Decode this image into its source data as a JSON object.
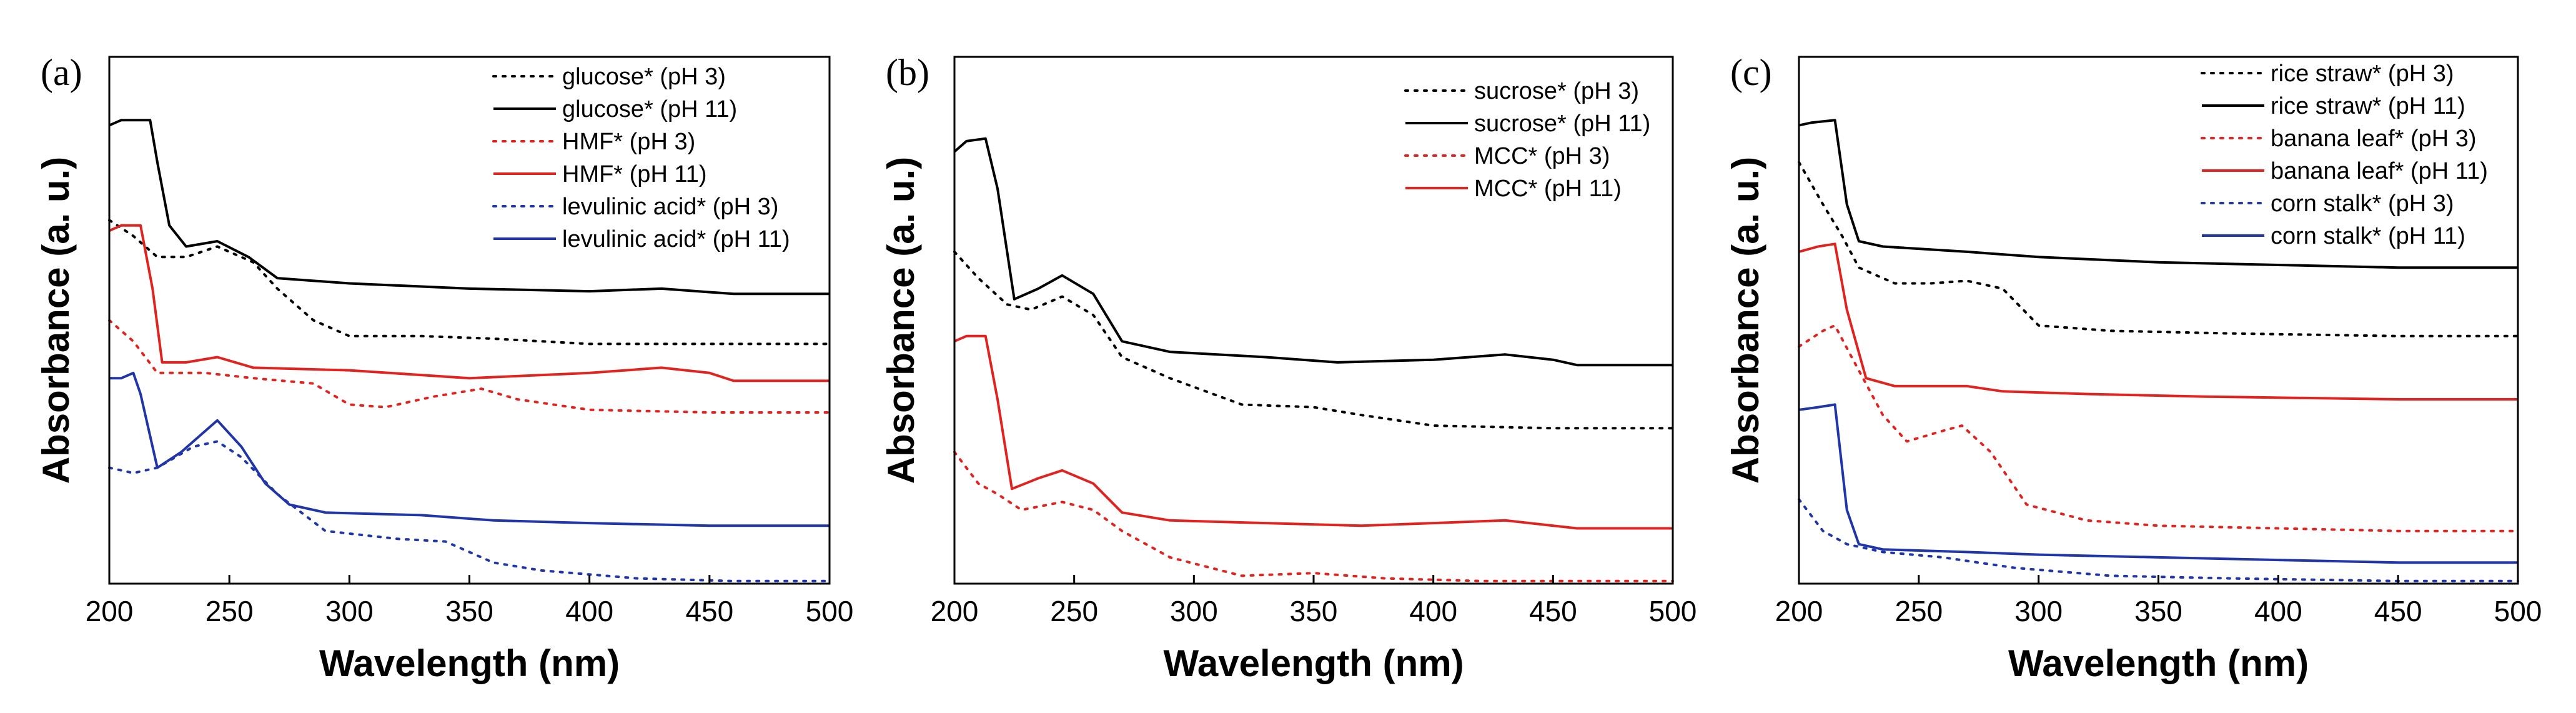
{
  "colors": {
    "black": "#000000",
    "red": "#e0231f",
    "blue": "#1f35a8"
  },
  "chart_data": [
    {
      "panel_label": "(a)",
      "type": "line",
      "xlabel": "Wavelength (nm)",
      "ylabel": "Absorbance (a. u.)",
      "xlim": [
        200,
        500
      ],
      "ylim": [
        0,
        1
      ],
      "xticks": [
        200,
        250,
        300,
        350,
        400,
        450,
        500
      ],
      "y_tick_labels": false,
      "legend": "top-right",
      "series": [
        {
          "name": "glucose* (pH 3)",
          "color": "black",
          "dash": "dotted",
          "points": [
            [
              200,
              0.69
            ],
            [
              210,
              0.66
            ],
            [
              220,
              0.62
            ],
            [
              232,
              0.62
            ],
            [
              245,
              0.64
            ],
            [
              260,
              0.61
            ],
            [
              270,
              0.56
            ],
            [
              285,
              0.5
            ],
            [
              300,
              0.47
            ],
            [
              330,
              0.47
            ],
            [
              360,
              0.465
            ],
            [
              400,
              0.455
            ],
            [
              450,
              0.455
            ],
            [
              500,
              0.455
            ]
          ]
        },
        {
          "name": "glucose* (pH 11)",
          "color": "black",
          "dash": "solid",
          "points": [
            [
              200,
              0.87
            ],
            [
              205,
              0.88
            ],
            [
              210,
              0.88
            ],
            [
              217,
              0.88
            ],
            [
              220,
              0.8
            ],
            [
              225,
              0.68
            ],
            [
              232,
              0.64
            ],
            [
              245,
              0.65
            ],
            [
              258,
              0.62
            ],
            [
              270,
              0.58
            ],
            [
              300,
              0.57
            ],
            [
              350,
              0.56
            ],
            [
              400,
              0.555
            ],
            [
              430,
              0.56
            ],
            [
              460,
              0.55
            ],
            [
              500,
              0.55
            ]
          ]
        },
        {
          "name": "HMF* (pH 3)",
          "color": "red",
          "dash": "dotted",
          "points": [
            [
              200,
              0.5
            ],
            [
              210,
              0.46
            ],
            [
              220,
              0.4
            ],
            [
              240,
              0.4
            ],
            [
              260,
              0.39
            ],
            [
              285,
              0.38
            ],
            [
              300,
              0.34
            ],
            [
              315,
              0.335
            ],
            [
              335,
              0.355
            ],
            [
              355,
              0.37
            ],
            [
              370,
              0.35
            ],
            [
              400,
              0.33
            ],
            [
              450,
              0.325
            ],
            [
              500,
              0.325
            ]
          ]
        },
        {
          "name": "HMF* (pH 11)",
          "color": "red",
          "dash": "solid",
          "points": [
            [
              200,
              0.67
            ],
            [
              205,
              0.68
            ],
            [
              213,
              0.68
            ],
            [
              218,
              0.56
            ],
            [
              222,
              0.42
            ],
            [
              232,
              0.42
            ],
            [
              245,
              0.43
            ],
            [
              260,
              0.41
            ],
            [
              300,
              0.405
            ],
            [
              350,
              0.39
            ],
            [
              400,
              0.4
            ],
            [
              430,
              0.41
            ],
            [
              450,
              0.4
            ],
            [
              460,
              0.385
            ],
            [
              500,
              0.385
            ]
          ]
        },
        {
          "name": "levulinic acid* (pH 3)",
          "color": "blue",
          "dash": "dotted",
          "points": [
            [
              200,
              0.22
            ],
            [
              210,
              0.21
            ],
            [
              220,
              0.22
            ],
            [
              235,
              0.26
            ],
            [
              245,
              0.27
            ],
            [
              255,
              0.24
            ],
            [
              270,
              0.17
            ],
            [
              290,
              0.1
            ],
            [
              320,
              0.085
            ],
            [
              340,
              0.08
            ],
            [
              360,
              0.04
            ],
            [
              380,
              0.025
            ],
            [
              420,
              0.01
            ],
            [
              460,
              0.005
            ],
            [
              500,
              0.005
            ]
          ]
        },
        {
          "name": "levulinic acid* (pH 11)",
          "color": "blue",
          "dash": "solid",
          "points": [
            [
              200,
              0.39
            ],
            [
              205,
              0.39
            ],
            [
              210,
              0.4
            ],
            [
              213,
              0.36
            ],
            [
              220,
              0.22
            ],
            [
              230,
              0.25
            ],
            [
              245,
              0.31
            ],
            [
              255,
              0.26
            ],
            [
              265,
              0.19
            ],
            [
              275,
              0.15
            ],
            [
              290,
              0.135
            ],
            [
              330,
              0.13
            ],
            [
              360,
              0.12
            ],
            [
              400,
              0.115
            ],
            [
              450,
              0.11
            ],
            [
              500,
              0.11
            ]
          ]
        }
      ]
    },
    {
      "panel_label": "(b)",
      "type": "line",
      "xlabel": "Wavelength (nm)",
      "ylabel": "Absorbance (a. u.)",
      "xlim": [
        200,
        500
      ],
      "ylim": [
        0,
        1
      ],
      "xticks": [
        200,
        250,
        300,
        350,
        400,
        450,
        500
      ],
      "y_tick_labels": false,
      "legend": "top-right",
      "series": [
        {
          "name": "sucrose* (pH 3)",
          "color": "black",
          "dash": "dotted",
          "points": [
            [
              200,
              0.63
            ],
            [
              210,
              0.58
            ],
            [
              222,
              0.53
            ],
            [
              232,
              0.52
            ],
            [
              245,
              0.545
            ],
            [
              258,
              0.51
            ],
            [
              270,
              0.43
            ],
            [
              290,
              0.39
            ],
            [
              320,
              0.34
            ],
            [
              350,
              0.335
            ],
            [
              370,
              0.32
            ],
            [
              400,
              0.3
            ],
            [
              450,
              0.295
            ],
            [
              500,
              0.295
            ]
          ]
        },
        {
          "name": "sucrose* (pH 11)",
          "color": "black",
          "dash": "solid",
          "points": [
            [
              200,
              0.82
            ],
            [
              205,
              0.84
            ],
            [
              213,
              0.845
            ],
            [
              218,
              0.75
            ],
            [
              225,
              0.54
            ],
            [
              235,
              0.56
            ],
            [
              245,
              0.585
            ],
            [
              258,
              0.55
            ],
            [
              270,
              0.46
            ],
            [
              290,
              0.44
            ],
            [
              330,
              0.43
            ],
            [
              360,
              0.42
            ],
            [
              400,
              0.425
            ],
            [
              430,
              0.435
            ],
            [
              450,
              0.425
            ],
            [
              460,
              0.415
            ],
            [
              500,
              0.415
            ]
          ]
        },
        {
          "name": "MCC* (pH 3)",
          "color": "red",
          "dash": "dotted",
          "points": [
            [
              200,
              0.25
            ],
            [
              210,
              0.19
            ],
            [
              218,
              0.17
            ],
            [
              228,
              0.14
            ],
            [
              245,
              0.155
            ],
            [
              258,
              0.14
            ],
            [
              270,
              0.1
            ],
            [
              290,
              0.05
            ],
            [
              320,
              0.015
            ],
            [
              350,
              0.02
            ],
            [
              380,
              0.01
            ],
            [
              420,
              0.005
            ],
            [
              460,
              0.005
            ],
            [
              500,
              0.005
            ]
          ]
        },
        {
          "name": "MCC* (pH 11)",
          "color": "red",
          "dash": "solid",
          "points": [
            [
              200,
              0.46
            ],
            [
              205,
              0.47
            ],
            [
              213,
              0.47
            ],
            [
              218,
              0.35
            ],
            [
              224,
              0.18
            ],
            [
              235,
              0.2
            ],
            [
              245,
              0.215
            ],
            [
              258,
              0.19
            ],
            [
              270,
              0.135
            ],
            [
              290,
              0.12
            ],
            [
              330,
              0.115
            ],
            [
              370,
              0.11
            ],
            [
              400,
              0.115
            ],
            [
              430,
              0.12
            ],
            [
              460,
              0.105
            ],
            [
              500,
              0.105
            ]
          ]
        }
      ]
    },
    {
      "panel_label": "(c)",
      "type": "line",
      "xlabel": "Wavelength (nm)",
      "ylabel": "Absorbance (a. u.)",
      "xlim": [
        200,
        500
      ],
      "ylim": [
        0,
        1
      ],
      "xticks": [
        200,
        250,
        300,
        350,
        400,
        450,
        500
      ],
      "y_tick_labels": false,
      "legend": "top-right",
      "series": [
        {
          "name": "rice straw* (pH 3)",
          "color": "black",
          "dash": "dotted",
          "points": [
            [
              200,
              0.8
            ],
            [
              210,
              0.72
            ],
            [
              218,
              0.66
            ],
            [
              225,
              0.6
            ],
            [
              240,
              0.57
            ],
            [
              255,
              0.57
            ],
            [
              270,
              0.575
            ],
            [
              285,
              0.56
            ],
            [
              300,
              0.49
            ],
            [
              330,
              0.48
            ],
            [
              380,
              0.475
            ],
            [
              450,
              0.47
            ],
            [
              500,
              0.47
            ]
          ]
        },
        {
          "name": "rice straw* (pH 11)",
          "color": "black",
          "dash": "solid",
          "points": [
            [
              200,
              0.87
            ],
            [
              205,
              0.875
            ],
            [
              215,
              0.88
            ],
            [
              220,
              0.72
            ],
            [
              225,
              0.65
            ],
            [
              235,
              0.64
            ],
            [
              270,
              0.63
            ],
            [
              300,
              0.62
            ],
            [
              350,
              0.61
            ],
            [
              400,
              0.605
            ],
            [
              450,
              0.6
            ],
            [
              500,
              0.6
            ]
          ]
        },
        {
          "name": "banana leaf* (pH 3)",
          "color": "red",
          "dash": "dotted",
          "points": [
            [
              200,
              0.45
            ],
            [
              210,
              0.48
            ],
            [
              215,
              0.49
            ],
            [
              222,
              0.43
            ],
            [
              235,
              0.32
            ],
            [
              245,
              0.27
            ],
            [
              260,
              0.29
            ],
            [
              268,
              0.3
            ],
            [
              280,
              0.25
            ],
            [
              295,
              0.15
            ],
            [
              320,
              0.12
            ],
            [
              350,
              0.11
            ],
            [
              400,
              0.105
            ],
            [
              450,
              0.1
            ],
            [
              500,
              0.1
            ]
          ]
        },
        {
          "name": "banana leaf* (pH 11)",
          "color": "red",
          "dash": "solid",
          "points": [
            [
              200,
              0.63
            ],
            [
              208,
              0.64
            ],
            [
              215,
              0.645
            ],
            [
              220,
              0.52
            ],
            [
              228,
              0.39
            ],
            [
              240,
              0.375
            ],
            [
              255,
              0.375
            ],
            [
              270,
              0.375
            ],
            [
              285,
              0.365
            ],
            [
              320,
              0.36
            ],
            [
              370,
              0.355
            ],
            [
              450,
              0.35
            ],
            [
              500,
              0.35
            ]
          ]
        },
        {
          "name": "corn stalk* (pH 3)",
          "color": "blue",
          "dash": "dotted",
          "points": [
            [
              200,
              0.16
            ],
            [
              210,
              0.1
            ],
            [
              220,
              0.075
            ],
            [
              235,
              0.06
            ],
            [
              260,
              0.05
            ],
            [
              290,
              0.03
            ],
            [
              330,
              0.015
            ],
            [
              380,
              0.01
            ],
            [
              450,
              0.005
            ],
            [
              500,
              0.005
            ]
          ]
        },
        {
          "name": "corn stalk* (pH 11)",
          "color": "blue",
          "dash": "solid",
          "points": [
            [
              200,
              0.33
            ],
            [
              208,
              0.335
            ],
            [
              215,
              0.34
            ],
            [
              220,
              0.14
            ],
            [
              225,
              0.075
            ],
            [
              235,
              0.065
            ],
            [
              270,
              0.06
            ],
            [
              300,
              0.055
            ],
            [
              350,
              0.05
            ],
            [
              400,
              0.045
            ],
            [
              450,
              0.04
            ],
            [
              500,
              0.04
            ]
          ]
        }
      ]
    }
  ]
}
